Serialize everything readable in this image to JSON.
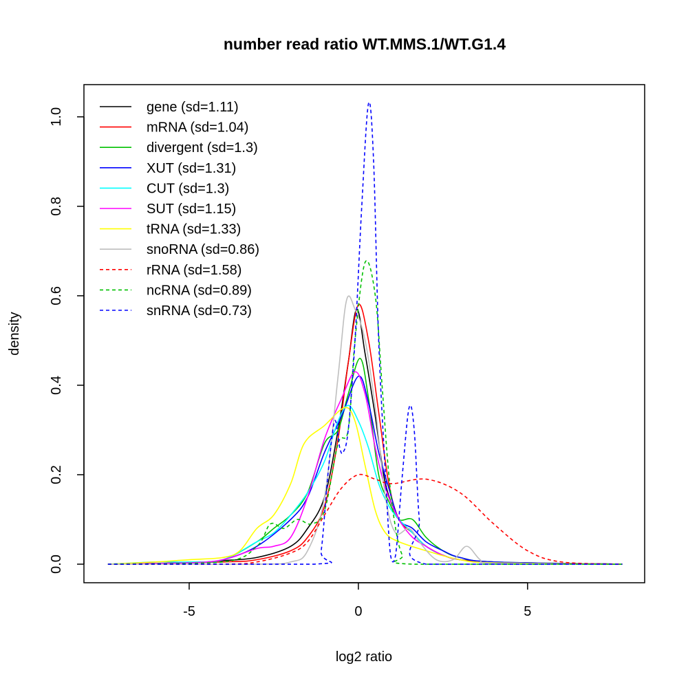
{
  "chart_data": {
    "type": "line",
    "title": "number read ratio WT.MMS.1/WT.G1.4",
    "xlabel": "log2 ratio",
    "ylabel": "density",
    "xlim": [
      -8.11,
      8.46
    ],
    "ylim": [
      -0.0415,
      1.072
    ],
    "xticks": [
      -5,
      0,
      5
    ],
    "xtick_labels": [
      "-5",
      "0",
      "5"
    ],
    "yticks": [
      0,
      0.2,
      0.4,
      0.6,
      0.8,
      1.0
    ],
    "ytick_labels": [
      "0.0",
      "0.2",
      "0.4",
      "0.6",
      "0.8",
      "1.0"
    ],
    "grid": false,
    "legend_position": "top-left",
    "series": [
      {
        "name": "gene (sd=1.11)",
        "color": "#000000",
        "dash": false,
        "points": [
          [
            -7.4,
            0
          ],
          [
            -5,
            0.003
          ],
          [
            -4,
            0.008
          ],
          [
            -3,
            0.015
          ],
          [
            -2,
            0.04
          ],
          [
            -1.5,
            0.08
          ],
          [
            -1,
            0.15
          ],
          [
            -0.6,
            0.3
          ],
          [
            -0.3,
            0.45
          ],
          [
            -0.05,
            0.57
          ],
          [
            0.2,
            0.47
          ],
          [
            0.5,
            0.33
          ],
          [
            0.8,
            0.18
          ],
          [
            1.2,
            0.1
          ],
          [
            1.6,
            0.07
          ],
          [
            2,
            0.04
          ],
          [
            2.5,
            0.02
          ],
          [
            3,
            0.01
          ],
          [
            4,
            0.005
          ],
          [
            5,
            0.002
          ],
          [
            7.8,
            0
          ]
        ]
      },
      {
        "name": "mRNA (sd=1.04)",
        "color": "#ff0000",
        "dash": false,
        "points": [
          [
            -7.4,
            0
          ],
          [
            -4,
            0.005
          ],
          [
            -3,
            0.01
          ],
          [
            -2,
            0.03
          ],
          [
            -1.5,
            0.06
          ],
          [
            -1,
            0.13
          ],
          [
            -0.6,
            0.28
          ],
          [
            -0.3,
            0.45
          ],
          [
            0,
            0.58
          ],
          [
            0.3,
            0.5
          ],
          [
            0.6,
            0.34
          ],
          [
            0.9,
            0.18
          ],
          [
            1.2,
            0.1
          ],
          [
            1.6,
            0.07
          ],
          [
            2,
            0.04
          ],
          [
            2.5,
            0.02
          ],
          [
            3,
            0.01
          ],
          [
            4,
            0.004
          ],
          [
            7.8,
            0
          ]
        ]
      },
      {
        "name": "divergent (sd=1.3)",
        "color": "#00c000",
        "dash": false,
        "points": [
          [
            -7.4,
            0
          ],
          [
            -5,
            0.003
          ],
          [
            -4,
            0.01
          ],
          [
            -3,
            0.05
          ],
          [
            -2.5,
            0.08
          ],
          [
            -2,
            0.11
          ],
          [
            -1.5,
            0.16
          ],
          [
            -1,
            0.27
          ],
          [
            -0.6,
            0.3
          ],
          [
            -0.3,
            0.38
          ],
          [
            0.05,
            0.46
          ],
          [
            0.3,
            0.37
          ],
          [
            0.6,
            0.2
          ],
          [
            0.9,
            0.14
          ],
          [
            1.2,
            0.1
          ],
          [
            1.6,
            0.1
          ],
          [
            2,
            0.06
          ],
          [
            2.5,
            0.03
          ],
          [
            3,
            0.015
          ],
          [
            4,
            0.005
          ],
          [
            7.8,
            0
          ]
        ]
      },
      {
        "name": "XUT (sd=1.31)",
        "color": "#0000ff",
        "dash": false,
        "points": [
          [
            -7.4,
            0
          ],
          [
            -5,
            0.003
          ],
          [
            -4,
            0.01
          ],
          [
            -3,
            0.04
          ],
          [
            -2,
            0.1
          ],
          [
            -1.5,
            0.15
          ],
          [
            -1,
            0.25
          ],
          [
            -0.5,
            0.33
          ],
          [
            0,
            0.42
          ],
          [
            0.3,
            0.36
          ],
          [
            0.6,
            0.25
          ],
          [
            0.9,
            0.17
          ],
          [
            1.2,
            0.1
          ],
          [
            1.6,
            0.08
          ],
          [
            2,
            0.05
          ],
          [
            2.5,
            0.03
          ],
          [
            3,
            0.015
          ],
          [
            4,
            0.005
          ],
          [
            7.8,
            0
          ]
        ]
      },
      {
        "name": "CUT (sd=1.3)",
        "color": "#00ffff",
        "dash": false,
        "points": [
          [
            -7.4,
            0
          ],
          [
            -6,
            0.005
          ],
          [
            -5,
            0.005
          ],
          [
            -4,
            0.01
          ],
          [
            -3,
            0.05
          ],
          [
            -2.5,
            0.07
          ],
          [
            -2,
            0.11
          ],
          [
            -1.5,
            0.16
          ],
          [
            -1,
            0.23
          ],
          [
            -0.6,
            0.32
          ],
          [
            -0.3,
            0.355
          ],
          [
            0,
            0.32
          ],
          [
            0.3,
            0.26
          ],
          [
            0.6,
            0.18
          ],
          [
            0.9,
            0.13
          ],
          [
            1.2,
            0.1
          ],
          [
            1.6,
            0.07
          ],
          [
            2,
            0.04
          ],
          [
            2.5,
            0.02
          ],
          [
            3,
            0.01
          ],
          [
            4,
            0.003
          ],
          [
            7.8,
            0
          ]
        ]
      },
      {
        "name": "SUT (sd=1.15)",
        "color": "#ff00ff",
        "dash": false,
        "points": [
          [
            -7.4,
            0
          ],
          [
            -5,
            0.003
          ],
          [
            -4,
            0.01
          ],
          [
            -3,
            0.035
          ],
          [
            -2.5,
            0.04
          ],
          [
            -2,
            0.06
          ],
          [
            -1.5,
            0.15
          ],
          [
            -1,
            0.28
          ],
          [
            -0.5,
            0.37
          ],
          [
            -0.1,
            0.43
          ],
          [
            0.2,
            0.38
          ],
          [
            0.5,
            0.26
          ],
          [
            0.8,
            0.17
          ],
          [
            1.2,
            0.1
          ],
          [
            1.6,
            0.06
          ],
          [
            2,
            0.04
          ],
          [
            2.5,
            0.02
          ],
          [
            3,
            0.01
          ],
          [
            4,
            0.003
          ],
          [
            7.8,
            0
          ]
        ]
      },
      {
        "name": "tRNA (sd=1.33)",
        "color": "#ffff00",
        "dash": false,
        "points": [
          [
            -7.4,
            0
          ],
          [
            -6,
            0.005
          ],
          [
            -5,
            0.01
          ],
          [
            -4,
            0.015
          ],
          [
            -3.5,
            0.03
          ],
          [
            -3,
            0.08
          ],
          [
            -2.5,
            0.11
          ],
          [
            -2,
            0.18
          ],
          [
            -1.6,
            0.27
          ],
          [
            -1,
            0.31
          ],
          [
            -0.4,
            0.35
          ],
          [
            -0.1,
            0.32
          ],
          [
            0.2,
            0.22
          ],
          [
            0.5,
            0.12
          ],
          [
            0.8,
            0.07
          ],
          [
            1.2,
            0.05
          ],
          [
            2,
            0.03
          ],
          [
            3,
            0.01
          ],
          [
            4,
            0.003
          ],
          [
            7.8,
            0
          ]
        ]
      },
      {
        "name": "snoRNA (sd=0.86)",
        "color": "#bebebe",
        "dash": false,
        "points": [
          [
            -7.4,
            0
          ],
          [
            -3,
            0
          ],
          [
            -2,
            0.005
          ],
          [
            -1.5,
            0.03
          ],
          [
            -1,
            0.15
          ],
          [
            -0.6,
            0.42
          ],
          [
            -0.35,
            0.59
          ],
          [
            -0.1,
            0.57
          ],
          [
            0.2,
            0.5
          ],
          [
            0.5,
            0.35
          ],
          [
            0.8,
            0.15
          ],
          [
            1.1,
            0.07
          ],
          [
            1.5,
            0.08
          ],
          [
            1.8,
            0.05
          ],
          [
            2.3,
            0.01
          ],
          [
            2.8,
            0.01
          ],
          [
            3.2,
            0.04
          ],
          [
            3.6,
            0.01
          ],
          [
            4,
            0.002
          ],
          [
            7.8,
            0
          ]
        ]
      },
      {
        "name": "rRNA (sd=1.58)",
        "color": "#ff0000",
        "dash": true,
        "points": [
          [
            -7.4,
            0
          ],
          [
            -4,
            0
          ],
          [
            -3,
            0.005
          ],
          [
            -2,
            0.025
          ],
          [
            -1.5,
            0.05
          ],
          [
            -1,
            0.11
          ],
          [
            -0.5,
            0.17
          ],
          [
            0,
            0.2
          ],
          [
            0.5,
            0.19
          ],
          [
            1,
            0.18
          ],
          [
            2,
            0.19
          ],
          [
            3,
            0.16
          ],
          [
            4,
            0.09
          ],
          [
            5,
            0.03
          ],
          [
            6,
            0.005
          ],
          [
            7.8,
            0
          ]
        ]
      },
      {
        "name": "ncRNA (sd=0.89)",
        "color": "#00c000",
        "dash": true,
        "points": [
          [
            -7.4,
            0
          ],
          [
            -4,
            0.005
          ],
          [
            -3,
            0.04
          ],
          [
            -2.6,
            0.09
          ],
          [
            -2.2,
            0.08
          ],
          [
            -1.8,
            0.1
          ],
          [
            -1.4,
            0.09
          ],
          [
            -1,
            0.12
          ],
          [
            -0.6,
            0.27
          ],
          [
            -0.3,
            0.3
          ],
          [
            -0.1,
            0.5
          ],
          [
            0.2,
            0.675
          ],
          [
            0.5,
            0.6
          ],
          [
            0.7,
            0.4
          ],
          [
            0.9,
            0.2
          ],
          [
            1.1,
            0.08
          ],
          [
            1.3,
            0.02
          ],
          [
            1.6,
            0
          ],
          [
            7.8,
            0
          ]
        ]
      },
      {
        "name": "snRNA (sd=0.73)",
        "color": "#0000ff",
        "dash": true,
        "points": [
          [
            -7.4,
            0
          ],
          [
            -1.3,
            0
          ],
          [
            -1.1,
            0.03
          ],
          [
            -0.9,
            0.2
          ],
          [
            -0.7,
            0.32
          ],
          [
            -0.55,
            0.26
          ],
          [
            -0.45,
            0.25
          ],
          [
            -0.3,
            0.3
          ],
          [
            -0.1,
            0.5
          ],
          [
            0.1,
            0.8
          ],
          [
            0.3,
            1.03
          ],
          [
            0.45,
            0.9
          ],
          [
            0.6,
            0.5
          ],
          [
            0.8,
            0.2
          ],
          [
            0.95,
            0.02
          ],
          [
            1.1,
            0.02
          ],
          [
            1.3,
            0.2
          ],
          [
            1.5,
            0.35
          ],
          [
            1.65,
            0.3
          ],
          [
            1.8,
            0.1
          ],
          [
            2,
            0
          ],
          [
            7.8,
            0
          ]
        ]
      }
    ]
  }
}
